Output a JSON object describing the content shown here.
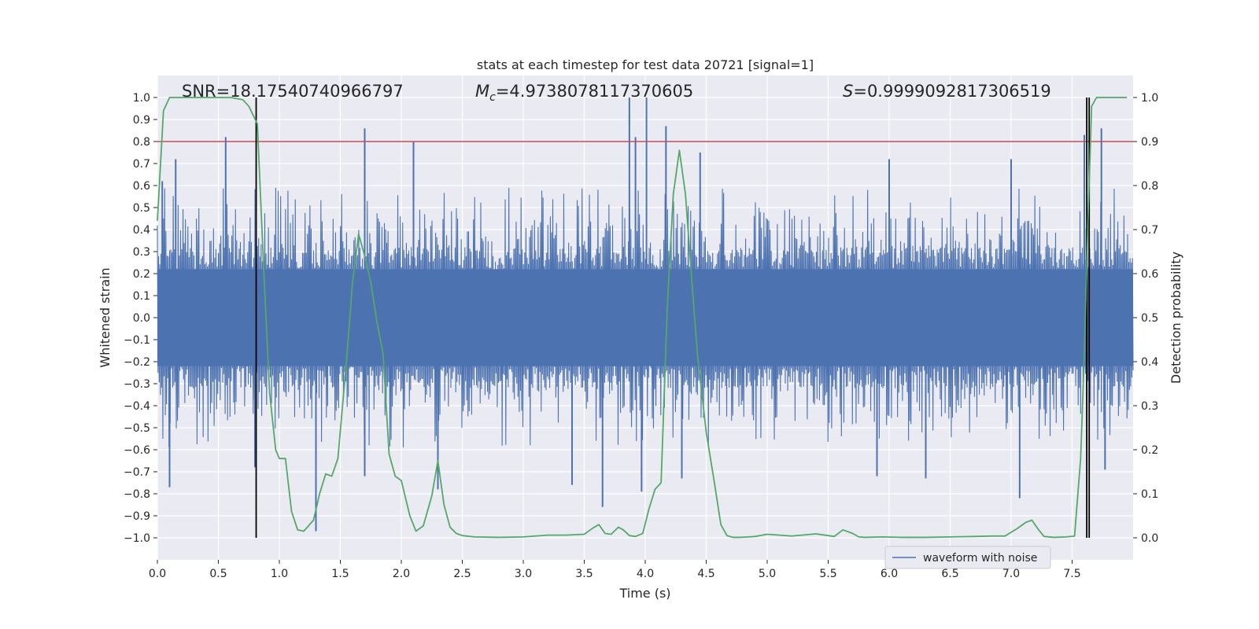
{
  "chart_data": {
    "type": "line",
    "title": "stats at each timestep for test data 20721 [signal=1]",
    "xlabel": "Time (s)",
    "ylabel": "Whitened strain",
    "y2label": "Detection probability",
    "xlim": [
      0.0,
      8.0
    ],
    "ylim": [
      -1.1,
      1.1
    ],
    "y2lim": [
      -0.05,
      1.05
    ],
    "xticks": [
      0.0,
      0.5,
      1.0,
      1.5,
      2.0,
      2.5,
      3.0,
      3.5,
      4.0,
      4.5,
      5.0,
      5.5,
      6.0,
      6.5,
      7.0,
      7.5
    ],
    "xtick_labels": [
      "0.0",
      "0.5",
      "1.0",
      "1.5",
      "2.0",
      "2.5",
      "3.0",
      "3.5",
      "4.0",
      "4.5",
      "5.0",
      "5.5",
      "6.0",
      "6.5",
      "7.0",
      "7.5"
    ],
    "yticks": [
      1.0,
      0.9,
      0.8,
      0.7,
      0.6,
      0.5,
      0.4,
      0.3,
      0.2,
      0.1,
      0.0,
      -0.1,
      -0.2,
      -0.3,
      -0.4,
      -0.5,
      -0.6,
      -0.7,
      -0.8,
      -0.9,
      -1.0
    ],
    "ytick_labels": [
      "1.0",
      "0.9",
      "0.8",
      "0.7",
      "0.6",
      "0.5",
      "0.4",
      "0.3",
      "0.2",
      "0.1",
      "0.0",
      "−0.1",
      "−0.2",
      "−0.3",
      "−0.4",
      "−0.5",
      "−0.6",
      "−0.7",
      "−0.8",
      "−0.9",
      "−1.0"
    ],
    "y2ticks": [
      1.0,
      0.9,
      0.8,
      0.7,
      0.6,
      0.5,
      0.4,
      0.3,
      0.2,
      0.1,
      0.0
    ],
    "y2tick_labels": [
      "1.0",
      "0.9",
      "0.8",
      "0.7",
      "0.6",
      "0.5",
      "0.4",
      "0.3",
      "0.2",
      "0.1",
      "0.0"
    ],
    "grid": true,
    "legend": {
      "placement": "lower right",
      "entries": [
        "waveform with noise"
      ]
    },
    "annotations": {
      "snr": "SNR=18.17540740966797",
      "mc_symbol": "M",
      "mc_sub": "c",
      "mc_value": "=4.9738078117370605",
      "s_symbol": "S",
      "s_value": "=0.9999092817306519"
    },
    "threshold": {
      "value": 0.8,
      "color": "#c44e52"
    },
    "vlines": [
      0.81,
      7.62,
      7.64
    ],
    "waveform": {
      "name": "waveform with noise",
      "color": "#4c72b0",
      "x_range": [
        0.0,
        8.0
      ],
      "core_envelope": [
        -0.22,
        0.22
      ],
      "typical_envelope": [
        -0.55,
        0.55
      ],
      "peaks": [
        {
          "x": 0.04,
          "y": 0.62
        },
        {
          "x": 0.1,
          "y": -0.77
        },
        {
          "x": 0.15,
          "y": 0.72
        },
        {
          "x": 0.56,
          "y": 0.82
        },
        {
          "x": 0.8,
          "y": -0.68
        },
        {
          "x": 1.3,
          "y": -0.97
        },
        {
          "x": 1.7,
          "y": 0.86
        },
        {
          "x": 1.7,
          "y": -0.72
        },
        {
          "x": 2.1,
          "y": 0.8
        },
        {
          "x": 2.3,
          "y": -0.78
        },
        {
          "x": 3.4,
          "y": -0.76
        },
        {
          "x": 3.65,
          "y": -0.86
        },
        {
          "x": 3.87,
          "y": 1.0
        },
        {
          "x": 3.92,
          "y": 0.82
        },
        {
          "x": 3.97,
          "y": -0.79
        },
        {
          "x": 4.01,
          "y": 1.0
        },
        {
          "x": 4.17,
          "y": 0.87
        },
        {
          "x": 4.3,
          "y": -0.73
        },
        {
          "x": 4.45,
          "y": 0.75
        },
        {
          "x": 5.9,
          "y": -0.72
        },
        {
          "x": 6.0,
          "y": 0.72
        },
        {
          "x": 6.3,
          "y": -0.73
        },
        {
          "x": 7.0,
          "y": 0.72
        },
        {
          "x": 7.07,
          "y": -0.82
        },
        {
          "x": 7.6,
          "y": 0.83
        },
        {
          "x": 7.74,
          "y": 0.86
        },
        {
          "x": 7.77,
          "y": -0.69
        }
      ]
    },
    "detection_probability": {
      "color": "#55a868",
      "x": [
        0.0,
        0.05,
        0.1,
        0.2,
        0.3,
        0.4,
        0.5,
        0.6,
        0.7,
        0.75,
        0.82,
        0.87,
        0.92,
        0.97,
        1.0,
        1.05,
        1.1,
        1.15,
        1.2,
        1.28,
        1.33,
        1.38,
        1.43,
        1.48,
        1.55,
        1.6,
        1.65,
        1.7,
        1.75,
        1.8,
        1.85,
        1.9,
        1.95,
        2.0,
        2.07,
        2.12,
        2.18,
        2.25,
        2.3,
        2.35,
        2.4,
        2.45,
        2.5,
        2.6,
        2.8,
        3.0,
        3.2,
        3.35,
        3.5,
        3.57,
        3.62,
        3.67,
        3.72,
        3.78,
        3.82,
        3.87,
        3.92,
        3.98,
        4.03,
        4.08,
        4.13,
        4.18,
        4.23,
        4.28,
        4.33,
        4.38,
        4.43,
        4.5,
        4.57,
        4.62,
        4.67,
        4.72,
        4.77,
        4.85,
        4.9,
        5.0,
        5.2,
        5.4,
        5.55,
        5.62,
        5.7,
        5.75,
        5.8,
        5.95,
        6.1,
        6.3,
        6.5,
        6.7,
        6.85,
        6.95,
        7.05,
        7.12,
        7.17,
        7.22,
        7.27,
        7.35,
        7.45,
        7.52,
        7.57,
        7.6,
        7.63,
        7.66,
        7.7,
        7.75,
        7.85,
        7.95
      ],
      "y": [
        0.72,
        0.97,
        1.0,
        1.0,
        1.0,
        1.0,
        1.0,
        1.0,
        0.995,
        0.98,
        0.94,
        0.62,
        0.33,
        0.2,
        0.18,
        0.18,
        0.06,
        0.018,
        0.015,
        0.04,
        0.1,
        0.145,
        0.14,
        0.18,
        0.4,
        0.58,
        0.69,
        0.64,
        0.58,
        0.49,
        0.42,
        0.19,
        0.14,
        0.13,
        0.05,
        0.015,
        0.027,
        0.095,
        0.175,
        0.075,
        0.024,
        0.01,
        0.005,
        0.002,
        0.001,
        0.002,
        0.006,
        0.006,
        0.008,
        0.022,
        0.03,
        0.01,
        0.008,
        0.024,
        0.018,
        0.005,
        0.003,
        0.01,
        0.065,
        0.11,
        0.125,
        0.52,
        0.78,
        0.88,
        0.78,
        0.59,
        0.41,
        0.24,
        0.12,
        0.03,
        0.005,
        0.001,
        0.001,
        0.002,
        0.003,
        0.008,
        0.004,
        0.009,
        0.003,
        0.018,
        0.01,
        0.002,
        0.001,
        0.002,
        0.001,
        0.001,
        0.002,
        0.003,
        0.004,
        0.004,
        0.021,
        0.035,
        0.04,
        0.02,
        0.003,
        0.001,
        0.002,
        0.004,
        0.18,
        0.42,
        0.72,
        0.98,
        1.0,
        1.0,
        1.0,
        1.0
      ]
    }
  }
}
